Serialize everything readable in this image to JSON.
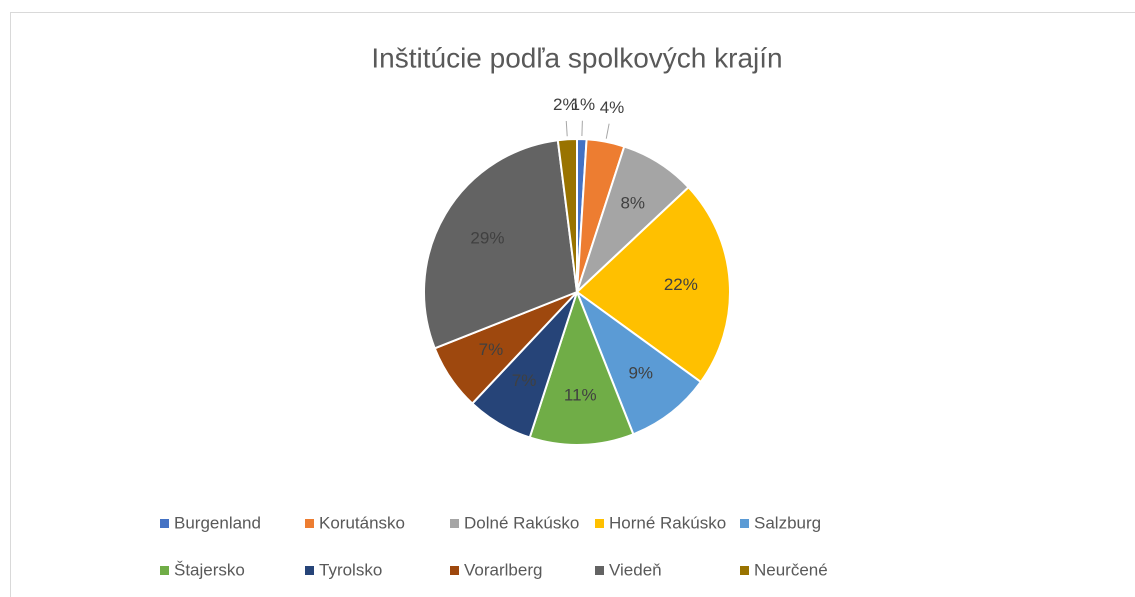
{
  "chart_data": {
    "type": "pie",
    "title": "Inštitúcie podľa spolkových krajín",
    "categories": [
      "Burgenland",
      "Korutánsko",
      "Dolné Rakúsko",
      "Horné Rakúsko",
      "Salzburg",
      "Štajersko",
      "Tyrolsko",
      "Vorarlberg",
      "Viedeň",
      "Neurčené"
    ],
    "values": [
      1,
      4,
      8,
      22,
      9,
      11,
      7,
      7,
      29,
      2
    ],
    "value_labels": [
      "1%",
      "4%",
      "8%",
      "22%",
      "9%",
      "11%",
      "7%",
      "7%",
      "29%",
      "2%"
    ],
    "colors": [
      "#4472c4",
      "#ed7d31",
      "#a5a5a5",
      "#ffc000",
      "#5b9bd5",
      "#70ad47",
      "#264478",
      "#9e480e",
      "#636363",
      "#997300"
    ],
    "legend": "bottom"
  }
}
